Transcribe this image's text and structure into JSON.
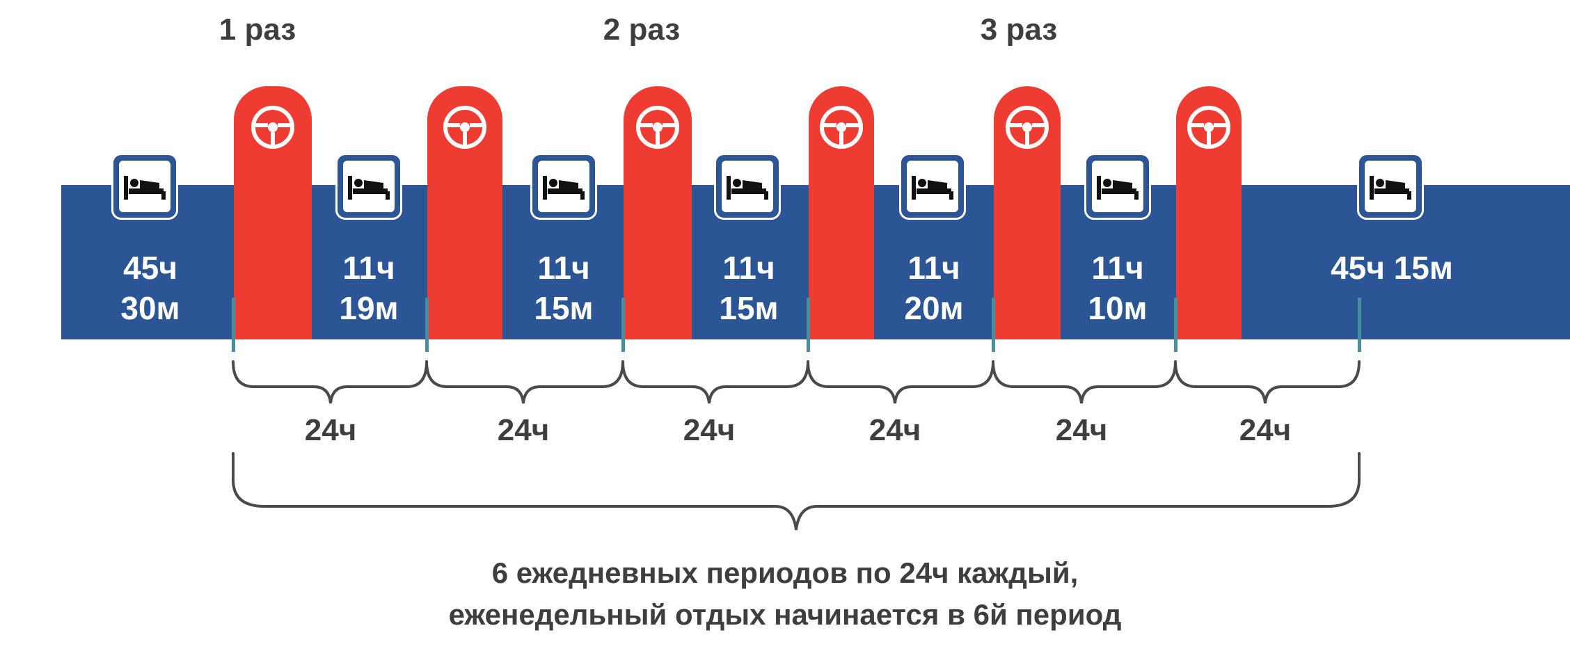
{
  "run_labels": [
    "1 раз",
    "2 раз",
    "3 раз"
  ],
  "rest_periods": [
    {
      "line1": "45ч",
      "line2": "30м"
    },
    {
      "line1": "11ч",
      "line2": "19м"
    },
    {
      "line1": "11ч",
      "line2": "15м"
    },
    {
      "line1": "11ч",
      "line2": "15м"
    },
    {
      "line1": "11ч",
      "line2": "20м"
    },
    {
      "line1": "11ч",
      "line2": "10м"
    },
    {
      "line1": "45ч 15м",
      "line2": ""
    }
  ],
  "day_labels": [
    "24ч",
    "24ч",
    "24ч",
    "24ч",
    "24ч",
    "24ч"
  ],
  "caption": {
    "line1": "6 ежедневных периодов по 24ч каждый,",
    "line2": "еженедельный отдых начинается в 6й период"
  },
  "colors": {
    "rest": "#2c5596",
    "driving": "#ef3c32",
    "text": "#3e3e3e",
    "tick": "#4a8e9e"
  },
  "icons": {
    "rest": "bed-icon",
    "driving": "steering-wheel-icon"
  }
}
